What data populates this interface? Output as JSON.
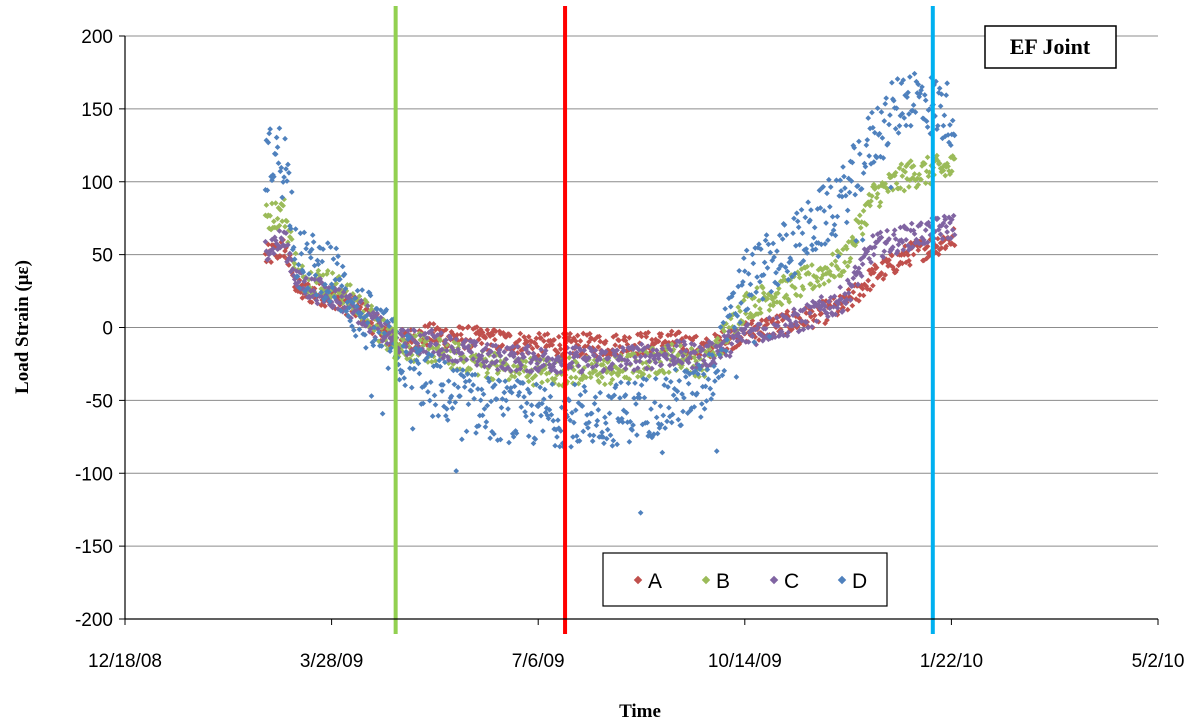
{
  "chart_data": {
    "type": "scatter",
    "title": "EF Joint",
    "xlabel": "Time",
    "ylabel": "Load Strain (με)",
    "ylim": [
      -200,
      200
    ],
    "xlim": [
      "2008-12-18",
      "2010-05-02"
    ],
    "x_ticks": [
      "12/18/08",
      "3/28/09",
      "7/6/09",
      "10/14/09",
      "1/22/10",
      "5/2/10"
    ],
    "y_ticks": [
      200,
      150,
      100,
      50,
      0,
      -50,
      -100,
      -150,
      -200
    ],
    "grid": "horizontal",
    "legend_position": "bottom-center",
    "vertical_lines": [
      {
        "date": "2009-04-28",
        "color": "#92d050"
      },
      {
        "date": "2009-07-19",
        "color": "#ff0000"
      },
      {
        "date": "2010-01-13",
        "color": "#00b0f0"
      }
    ],
    "series": [
      {
        "name": "A",
        "color": "#c0504d",
        "trend": [
          [
            "2009-02-24",
            48
          ],
          [
            "2009-03-05",
            55
          ],
          [
            "2009-03-12",
            25
          ],
          [
            "2009-03-28",
            22
          ],
          [
            "2009-04-10",
            12
          ],
          [
            "2009-04-28",
            -10
          ],
          [
            "2009-05-15",
            -5
          ],
          [
            "2009-06-10",
            -8
          ],
          [
            "2009-07-06",
            -12
          ],
          [
            "2009-08-10",
            -12
          ],
          [
            "2009-09-10",
            -10
          ],
          [
            "2009-09-25",
            -15
          ],
          [
            "2009-10-14",
            -3
          ],
          [
            "2009-11-10",
            5
          ],
          [
            "2009-12-01",
            15
          ],
          [
            "2009-12-15",
            35
          ],
          [
            "2010-01-01",
            50
          ],
          [
            "2010-01-24",
            62
          ]
        ]
      },
      {
        "name": "B",
        "color": "#9bbb59",
        "trend": [
          [
            "2009-02-24",
            75
          ],
          [
            "2009-03-05",
            80
          ],
          [
            "2009-03-12",
            35
          ],
          [
            "2009-03-28",
            30
          ],
          [
            "2009-04-10",
            15
          ],
          [
            "2009-04-28",
            -12
          ],
          [
            "2009-05-15",
            -15
          ],
          [
            "2009-06-10",
            -25
          ],
          [
            "2009-07-06",
            -30
          ],
          [
            "2009-08-10",
            -30
          ],
          [
            "2009-09-10",
            -20
          ],
          [
            "2009-09-25",
            -25
          ],
          [
            "2009-10-14",
            15
          ],
          [
            "2009-11-10",
            30
          ],
          [
            "2009-12-01",
            45
          ],
          [
            "2009-12-15",
            90
          ],
          [
            "2010-01-01",
            105
          ],
          [
            "2010-01-24",
            110
          ]
        ]
      },
      {
        "name": "C",
        "color": "#8064a2",
        "trend": [
          [
            "2009-02-24",
            55
          ],
          [
            "2009-03-05",
            60
          ],
          [
            "2009-03-12",
            30
          ],
          [
            "2009-03-28",
            22
          ],
          [
            "2009-04-10",
            12
          ],
          [
            "2009-04-28",
            -10
          ],
          [
            "2009-05-15",
            -10
          ],
          [
            "2009-06-10",
            -20
          ],
          [
            "2009-07-06",
            -22
          ],
          [
            "2009-08-10",
            -22
          ],
          [
            "2009-09-10",
            -18
          ],
          [
            "2009-09-25",
            -20
          ],
          [
            "2009-10-14",
            -5
          ],
          [
            "2009-11-10",
            5
          ],
          [
            "2009-12-01",
            20
          ],
          [
            "2009-12-15",
            55
          ],
          [
            "2010-01-01",
            62
          ],
          [
            "2010-01-24",
            70
          ]
        ]
      },
      {
        "name": "D",
        "color": "#4f81bd",
        "trend": [
          [
            "2009-02-24",
            115
          ],
          [
            "2009-03-05",
            120
          ],
          [
            "2009-03-12",
            45
          ],
          [
            "2009-03-28",
            40
          ],
          [
            "2009-04-10",
            10
          ],
          [
            "2009-04-28",
            -15
          ],
          [
            "2009-05-15",
            -40
          ],
          [
            "2009-06-10",
            -55
          ],
          [
            "2009-07-06",
            -60
          ],
          [
            "2009-08-10",
            -60
          ],
          [
            "2009-09-10",
            -50
          ],
          [
            "2009-09-25",
            -45
          ],
          [
            "2009-10-14",
            30
          ],
          [
            "2009-11-10",
            60
          ],
          [
            "2009-12-01",
            90
          ],
          [
            "2009-12-15",
            130
          ],
          [
            "2010-01-01",
            160
          ],
          [
            "2010-01-24",
            145
          ]
        ]
      }
    ]
  }
}
